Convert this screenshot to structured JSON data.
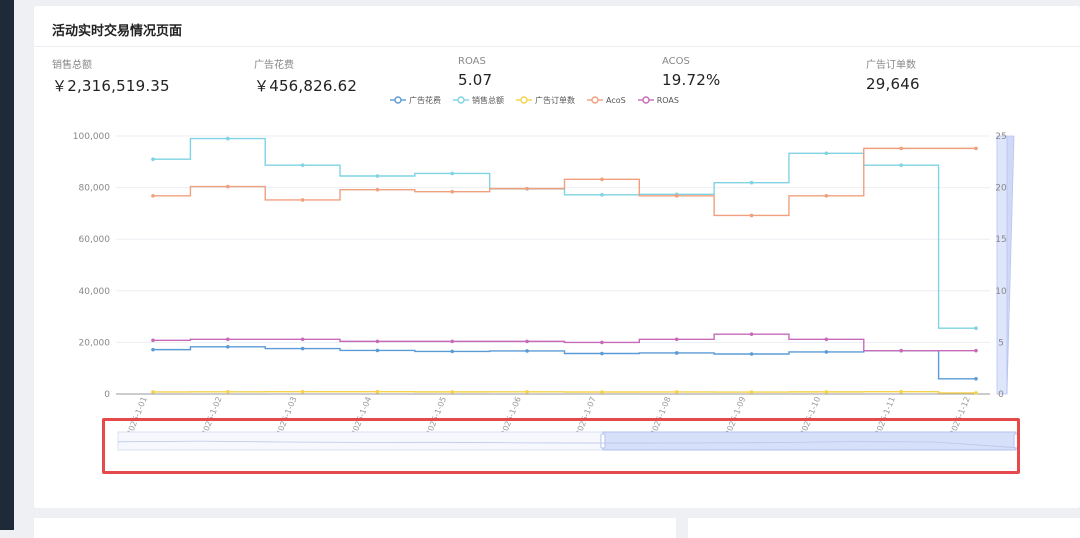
{
  "page": {
    "title": "活动实时交易情况页面"
  },
  "stats": [
    {
      "label": "销售总额",
      "value": "￥2,316,519.35"
    },
    {
      "label": "广告花费",
      "value": "￥456,826.62"
    },
    {
      "label": "ROAS",
      "value": "5.07"
    },
    {
      "label": "ACOS",
      "value": "19.72%"
    },
    {
      "label": "广告订单数",
      "value": "29,646"
    }
  ],
  "colors": {
    "ad_spend": "#5b9bd5",
    "sales": "#7fd3e3",
    "ad_orders": "#f5d24b",
    "acos": "#f0a07e",
    "roas": "#c76bb8",
    "highlight": "#e5494b",
    "slider_fill": "#cfd9f7"
  },
  "chart_data": {
    "type": "line",
    "step": true,
    "x": [
      "2026-1-01",
      "2026-1-02",
      "2026-1-03",
      "2026-1-04",
      "2026-1-05",
      "2026-1-06",
      "2026-1-07",
      "2026-1-08",
      "2026-1-09",
      "2026-1-10",
      "2026-1-11",
      "2026-1-12"
    ],
    "x_tick_labels": [
      "2026-1-01",
      "2026-1-02",
      "2026-1-03",
      "2026-1-04",
      "2026-1-05",
      "2026-1-06",
      "2026-1-07",
      "2026-1-08",
      "2026-1-09",
      "2026-1-10",
      "2026-1-11",
      "2026-1-12"
    ],
    "y_left": {
      "ticks": [
        "0",
        "20,000",
        "40,000",
        "60,000",
        "80,000",
        "100,000"
      ],
      "range": [
        0,
        100000
      ]
    },
    "y_right": {
      "ticks": [
        "0",
        "5",
        "10",
        "15",
        "20",
        "25"
      ],
      "range": [
        0,
        25
      ]
    },
    "series": [
      {
        "name": "广告花费",
        "axis": "left",
        "color": "#5b9bd5",
        "values": [
          17200,
          18300,
          17600,
          16900,
          16500,
          16700,
          15700,
          15900,
          15500,
          16300,
          16800,
          5900
        ]
      },
      {
        "name": "销售总额",
        "axis": "left",
        "color": "#7fd3e3",
        "values": [
          91000,
          99000,
          88700,
          84500,
          85500,
          79500,
          77200,
          77400,
          81900,
          93300,
          88700,
          25500
        ]
      },
      {
        "name": "广告订单数",
        "axis": "left",
        "color": "#f5d24b",
        "values": [
          800,
          850,
          900,
          880,
          820,
          860,
          780,
          800,
          750,
          820,
          880,
          400
        ]
      },
      {
        "name": "AcoS",
        "axis": "right",
        "color": "#f0a07e",
        "values": [
          19.2,
          20.1,
          18.8,
          19.8,
          19.6,
          19.9,
          20.8,
          19.2,
          17.3,
          19.2,
          23.8,
          23.8
        ]
      },
      {
        "name": "ROAS",
        "axis": "right",
        "color": "#c76bb8",
        "values": [
          5.2,
          5.3,
          5.3,
          5.1,
          5.1,
          5.1,
          5.0,
          5.3,
          5.8,
          5.3,
          4.2,
          4.2
        ]
      }
    ],
    "grid": true,
    "legend_position": "top-center",
    "data_zoom": {
      "start": 0.0,
      "end": 1.0,
      "window_start": 0.54,
      "window_end": 1.0
    }
  }
}
